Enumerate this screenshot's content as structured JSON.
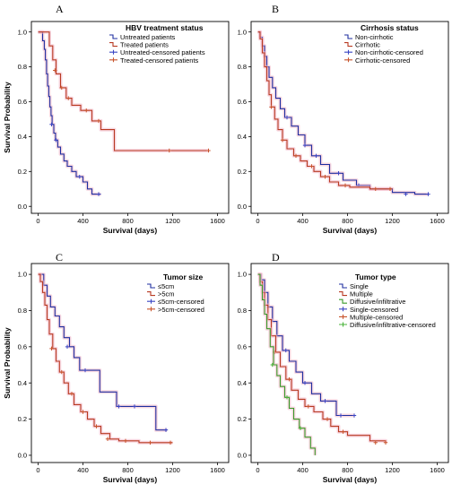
{
  "chart_data": [
    {
      "type": "line",
      "panel_letter": "A",
      "legend_title": "HBV treatment status",
      "legend_position": "top-right",
      "xlabel": "Survival (days)",
      "ylabel": "Survival Probability",
      "xlim": [
        -60,
        1700
      ],
      "ylim": [
        -0.04,
        1.06
      ],
      "x_ticks": [
        0,
        400,
        800,
        1200,
        1600
      ],
      "y_ticks": [
        0.0,
        0.2,
        0.4,
        0.6,
        0.8,
        1.0
      ],
      "legend": [
        "Untreated patients",
        "Treated patients",
        "Untreated-censored patients",
        "Treated-censored patients"
      ],
      "series": [
        {
          "name": "Untreated patients",
          "color": "#1f2fa0",
          "points": [
            [
              0,
              1.0
            ],
            [
              30,
              1.0
            ],
            [
              40,
              0.95
            ],
            [
              55,
              0.9
            ],
            [
              65,
              0.84
            ],
            [
              75,
              0.76
            ],
            [
              85,
              0.69
            ],
            [
              95,
              0.63
            ],
            [
              105,
              0.57
            ],
            [
              115,
              0.52
            ],
            [
              125,
              0.47
            ],
            [
              140,
              0.42
            ],
            [
              155,
              0.38
            ],
            [
              175,
              0.34
            ],
            [
              200,
              0.3
            ],
            [
              230,
              0.26
            ],
            [
              260,
              0.23
            ],
            [
              300,
              0.2
            ],
            [
              340,
              0.17
            ],
            [
              400,
              0.14
            ],
            [
              440,
              0.1
            ],
            [
              480,
              0.07
            ],
            [
              520,
              0.07
            ],
            [
              560,
              0.07
            ]
          ],
          "censored": [
            [
              120,
              0.47
            ],
            [
              160,
              0.38
            ],
            [
              370,
              0.17
            ],
            [
              540,
              0.07
            ]
          ]
        },
        {
          "name": "Treated patients",
          "color": "#b83a22",
          "points": [
            [
              0,
              1.0
            ],
            [
              80,
              1.0
            ],
            [
              100,
              0.92
            ],
            [
              130,
              0.84
            ],
            [
              160,
              0.76
            ],
            [
              200,
              0.68
            ],
            [
              250,
              0.62
            ],
            [
              300,
              0.58
            ],
            [
              380,
              0.55
            ],
            [
              480,
              0.49
            ],
            [
              560,
              0.44
            ],
            [
              680,
              0.32
            ],
            [
              900,
              0.32
            ],
            [
              1200,
              0.32
            ],
            [
              1520,
              0.32
            ]
          ],
          "censored": [
            [
              150,
              0.78
            ],
            [
              210,
              0.68
            ],
            [
              270,
              0.62
            ],
            [
              430,
              0.55
            ],
            [
              540,
              0.49
            ],
            [
              1170,
              0.32
            ],
            [
              1520,
              0.32
            ]
          ]
        }
      ]
    },
    {
      "type": "line",
      "panel_letter": "B",
      "legend_title": "Cirrhosis status",
      "legend_position": "top-right",
      "xlabel": "Survival (days)",
      "ylabel": "",
      "xlim": [
        -60,
        1700
      ],
      "ylim": [
        -0.04,
        1.06
      ],
      "x_ticks": [
        0,
        400,
        800,
        1200,
        1600
      ],
      "y_ticks": [
        0.0,
        0.2,
        0.4,
        0.6,
        0.8,
        1.0
      ],
      "legend": [
        "Non-cirrhotic",
        "Cirrhotic",
        "Non-cirrhotic-censored",
        "Cirrhotic-censored"
      ],
      "series": [
        {
          "name": "Non-cirrhotic",
          "color": "#1f2fa0",
          "points": [
            [
              0,
              1.0
            ],
            [
              20,
              0.97
            ],
            [
              40,
              0.92
            ],
            [
              60,
              0.86
            ],
            [
              80,
              0.8
            ],
            [
              100,
              0.74
            ],
            [
              130,
              0.68
            ],
            [
              160,
              0.62
            ],
            [
              200,
              0.56
            ],
            [
              240,
              0.51
            ],
            [
              300,
              0.46
            ],
            [
              360,
              0.41
            ],
            [
              420,
              0.35
            ],
            [
              480,
              0.29
            ],
            [
              560,
              0.24
            ],
            [
              640,
              0.19
            ],
            [
              760,
              0.15
            ],
            [
              880,
              0.12
            ],
            [
              1000,
              0.1
            ],
            [
              1200,
              0.08
            ],
            [
              1400,
              0.07
            ],
            [
              1520,
              0.07
            ]
          ],
          "censored": [
            [
              260,
              0.51
            ],
            [
              420,
              0.35
            ],
            [
              520,
              0.29
            ],
            [
              720,
              0.19
            ],
            [
              900,
              0.12
            ],
            [
              1320,
              0.07
            ],
            [
              1520,
              0.07
            ]
          ]
        },
        {
          "name": "Cirrhotic",
          "color": "#b83a22",
          "points": [
            [
              0,
              1.0
            ],
            [
              20,
              0.96
            ],
            [
              40,
              0.88
            ],
            [
              60,
              0.8
            ],
            [
              80,
              0.72
            ],
            [
              100,
              0.64
            ],
            [
              120,
              0.57
            ],
            [
              150,
              0.5
            ],
            [
              180,
              0.44
            ],
            [
              220,
              0.38
            ],
            [
              260,
              0.33
            ],
            [
              320,
              0.29
            ],
            [
              380,
              0.26
            ],
            [
              440,
              0.23
            ],
            [
              500,
              0.2
            ],
            [
              560,
              0.17
            ],
            [
              640,
              0.14
            ],
            [
              720,
              0.12
            ],
            [
              820,
              0.11
            ],
            [
              1000,
              0.1
            ],
            [
              1200,
              0.1
            ]
          ],
          "censored": [
            [
              120,
              0.57
            ],
            [
              220,
              0.38
            ],
            [
              340,
              0.29
            ],
            [
              480,
              0.23
            ],
            [
              600,
              0.17
            ],
            [
              780,
              0.12
            ],
            [
              1050,
              0.1
            ],
            [
              1180,
              0.1
            ]
          ]
        }
      ]
    },
    {
      "type": "line",
      "panel_letter": "C",
      "legend_title": "Tumor size",
      "legend_position": "top-right",
      "xlabel": "Survival (days)",
      "ylabel": "Survival Probability",
      "xlim": [
        -60,
        1700
      ],
      "ylim": [
        -0.04,
        1.06
      ],
      "x_ticks": [
        0,
        400,
        800,
        1200,
        1600
      ],
      "y_ticks": [
        0.0,
        0.2,
        0.4,
        0.6,
        0.8,
        1.0
      ],
      "legend": [
        "≤5cm",
        ">5cm",
        "≤5cm-censored",
        ">5cm-censored"
      ],
      "series": [
        {
          "name": "≤5cm",
          "color": "#1f2fa0",
          "points": [
            [
              0,
              1.0
            ],
            [
              30,
              1.0
            ],
            [
              50,
              0.94
            ],
            [
              80,
              0.88
            ],
            [
              110,
              0.82
            ],
            [
              150,
              0.77
            ],
            [
              190,
              0.71
            ],
            [
              230,
              0.65
            ],
            [
              280,
              0.6
            ],
            [
              320,
              0.54
            ],
            [
              370,
              0.47
            ],
            [
              500,
              0.47
            ],
            [
              550,
              0.35
            ],
            [
              700,
              0.27
            ],
            [
              900,
              0.27
            ],
            [
              1050,
              0.14
            ],
            [
              1150,
              0.14
            ]
          ],
          "censored": [
            [
              260,
              0.6
            ],
            [
              420,
              0.47
            ],
            [
              720,
              0.27
            ],
            [
              860,
              0.27
            ],
            [
              1140,
              0.14
            ]
          ]
        },
        {
          "name": ">5cm",
          "color": "#b83a22",
          "points": [
            [
              0,
              1.0
            ],
            [
              20,
              0.96
            ],
            [
              40,
              0.9
            ],
            [
              60,
              0.83
            ],
            [
              80,
              0.75
            ],
            [
              100,
              0.67
            ],
            [
              130,
              0.59
            ],
            [
              160,
              0.52
            ],
            [
              190,
              0.46
            ],
            [
              230,
              0.4
            ],
            [
              270,
              0.34
            ],
            [
              320,
              0.28
            ],
            [
              380,
              0.24
            ],
            [
              440,
              0.2
            ],
            [
              500,
              0.16
            ],
            [
              560,
              0.12
            ],
            [
              640,
              0.09
            ],
            [
              720,
              0.08
            ],
            [
              900,
              0.07
            ],
            [
              1200,
              0.07
            ]
          ],
          "censored": [
            [
              120,
              0.59
            ],
            [
              210,
              0.46
            ],
            [
              300,
              0.34
            ],
            [
              400,
              0.24
            ],
            [
              520,
              0.16
            ],
            [
              620,
              0.09
            ],
            [
              780,
              0.08
            ],
            [
              1000,
              0.07
            ],
            [
              1180,
              0.07
            ]
          ]
        }
      ]
    },
    {
      "type": "line",
      "panel_letter": "D",
      "legend_title": "Tumor type",
      "legend_position": "top-right",
      "xlabel": "Survival (days)",
      "ylabel": "",
      "xlim": [
        -60,
        1700
      ],
      "ylim": [
        -0.04,
        1.06
      ],
      "x_ticks": [
        0,
        400,
        800,
        1200,
        1600
      ],
      "y_ticks": [
        0.0,
        0.2,
        0.4,
        0.6,
        0.8,
        1.0
      ],
      "legend": [
        "Single",
        "Multiple",
        "Diffusive/infiltrative",
        "Single-censored",
        "Multiple-censored",
        "Diffusive/infiltrative-censored"
      ],
      "series": [
        {
          "name": "Single",
          "color": "#1f2fa0",
          "points": [
            [
              0,
              1.0
            ],
            [
              30,
              0.97
            ],
            [
              60,
              0.9
            ],
            [
              90,
              0.82
            ],
            [
              130,
              0.74
            ],
            [
              170,
              0.66
            ],
            [
              220,
              0.58
            ],
            [
              280,
              0.52
            ],
            [
              340,
              0.46
            ],
            [
              400,
              0.4
            ],
            [
              480,
              0.34
            ],
            [
              560,
              0.3
            ],
            [
              650,
              0.3
            ],
            [
              700,
              0.22
            ],
            [
              800,
              0.22
            ],
            [
              860,
              0.22
            ]
          ],
          "censored": [
            [
              250,
              0.58
            ],
            [
              420,
              0.4
            ],
            [
              600,
              0.3
            ],
            [
              740,
              0.22
            ],
            [
              860,
              0.22
            ]
          ]
        },
        {
          "name": "Multiple",
          "color": "#b83a22",
          "points": [
            [
              0,
              1.0
            ],
            [
              20,
              0.96
            ],
            [
              40,
              0.9
            ],
            [
              60,
              0.83
            ],
            [
              90,
              0.75
            ],
            [
              120,
              0.66
            ],
            [
              160,
              0.57
            ],
            [
              200,
              0.49
            ],
            [
              250,
              0.42
            ],
            [
              300,
              0.36
            ],
            [
              360,
              0.31
            ],
            [
              420,
              0.27
            ],
            [
              500,
              0.24
            ],
            [
              580,
              0.2
            ],
            [
              650,
              0.16
            ],
            [
              720,
              0.13
            ],
            [
              800,
              0.11
            ],
            [
              1000,
              0.08
            ],
            [
              1140,
              0.07
            ]
          ],
          "censored": [
            [
              150,
              0.57
            ],
            [
              280,
              0.42
            ],
            [
              450,
              0.27
            ],
            [
              620,
              0.2
            ],
            [
              760,
              0.13
            ],
            [
              1050,
              0.07
            ],
            [
              1140,
              0.07
            ]
          ]
        },
        {
          "name": "Diffusive/infiltrative",
          "color": "#3a9a2a",
          "points": [
            [
              0,
              1.0
            ],
            [
              20,
              0.94
            ],
            [
              40,
              0.86
            ],
            [
              60,
              0.78
            ],
            [
              80,
              0.7
            ],
            [
              110,
              0.6
            ],
            [
              140,
              0.5
            ],
            [
              170,
              0.44
            ],
            [
              200,
              0.38
            ],
            [
              240,
              0.32
            ],
            [
              280,
              0.26
            ],
            [
              320,
              0.2
            ],
            [
              370,
              0.15
            ],
            [
              420,
              0.1
            ],
            [
              470,
              0.04
            ],
            [
              500,
              0.04
            ],
            [
              510,
              0.0
            ]
          ],
          "censored": [
            [
              130,
              0.5
            ],
            [
              260,
              0.32
            ],
            [
              380,
              0.15
            ]
          ]
        }
      ]
    }
  ]
}
